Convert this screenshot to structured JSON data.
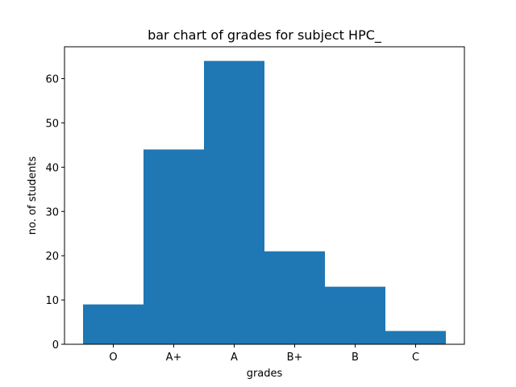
{
  "chart_data": {
    "type": "bar",
    "title": "bar chart of grades for subject HPC_",
    "xlabel": "grades",
    "ylabel": "no. of students",
    "categories": [
      "O",
      "A+",
      "A",
      "B+",
      "B",
      "C"
    ],
    "values": [
      9,
      44,
      64,
      21,
      13,
      3
    ],
    "ylim": [
      0,
      67.2
    ],
    "yticks": [
      0,
      10,
      20,
      30,
      40,
      50,
      60
    ],
    "grid": false,
    "bar_color": "#1f77b4"
  }
}
